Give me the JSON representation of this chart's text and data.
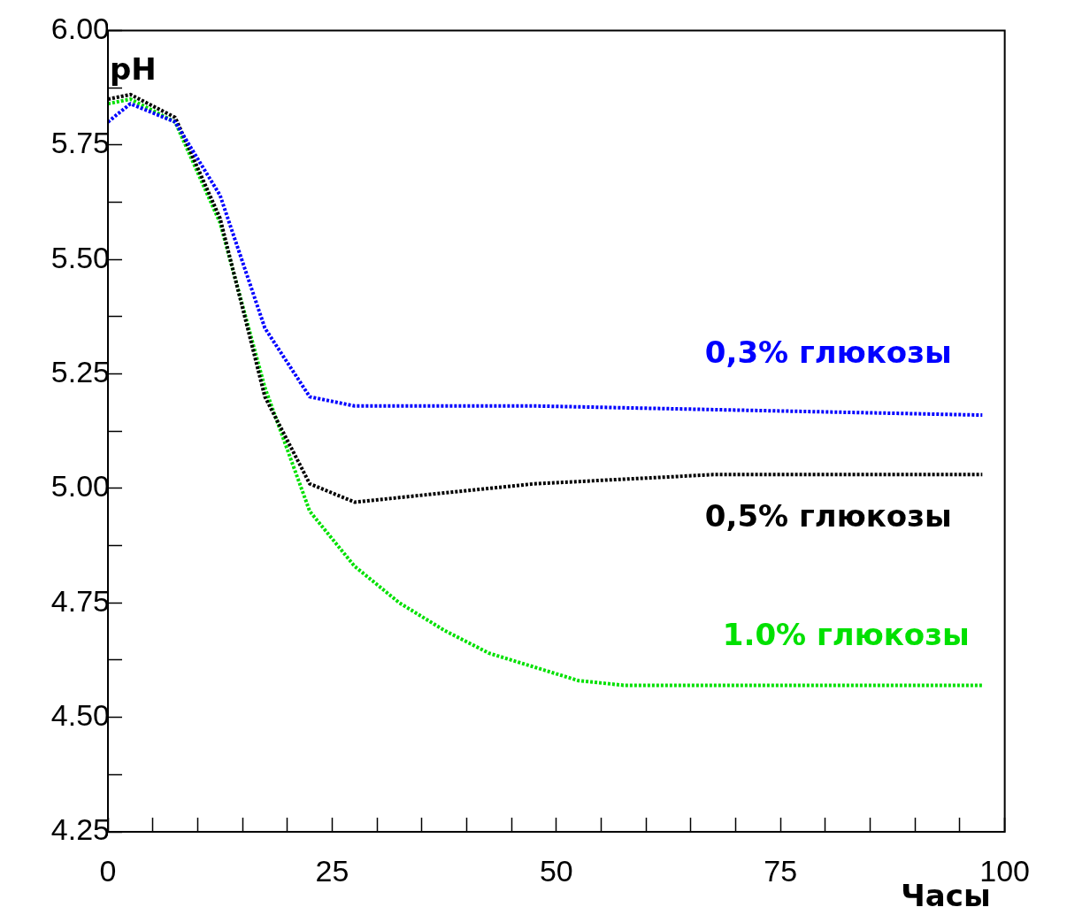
{
  "chart_data": {
    "type": "line",
    "xlabel": "Часы",
    "ylabel": "pH",
    "xlim": [
      0,
      100
    ],
    "ylim": [
      4.25,
      6
    ],
    "xticks": [
      0,
      {
        "value": 5,
        "label": null
      },
      {
        "value": 10,
        "label": null
      },
      {
        "value": 15,
        "label": null
      },
      {
        "value": 20,
        "label": null
      },
      25,
      {
        "value": 30,
        "label": null
      },
      {
        "value": 35,
        "label": null
      },
      {
        "value": 40,
        "label": null
      },
      {
        "value": 45,
        "label": null
      },
      50,
      {
        "value": 55,
        "label": null
      },
      {
        "value": 60,
        "label": null
      },
      {
        "value": 65,
        "label": null
      },
      {
        "value": 70,
        "label": null
      },
      75,
      {
        "value": 80,
        "label": null
      },
      {
        "value": 85,
        "label": null
      },
      {
        "value": 90,
        "label": null
      },
      {
        "value": 95,
        "label": null
      },
      100
    ],
    "yticks": [
      {
        "value": 4.25,
        "label": "4.25"
      },
      {
        "value": 4.375,
        "label": null
      },
      {
        "value": 4.5,
        "label": "4.50"
      },
      {
        "value": 4.625,
        "label": null
      },
      {
        "value": 4.75,
        "label": "4.75"
      },
      {
        "value": 4.875,
        "label": null
      },
      {
        "value": 5,
        "label": "5.00"
      },
      {
        "value": 5.125,
        "label": null
      },
      {
        "value": 5.25,
        "label": "5.25"
      },
      {
        "value": 5.375,
        "label": null
      },
      {
        "value": 5.5,
        "label": "5.50"
      },
      {
        "value": 5.625,
        "label": null
      },
      {
        "value": 5.75,
        "label": "5.75"
      },
      {
        "value": 5.875,
        "label": null
      },
      {
        "value": 6,
        "label": "6.00"
      }
    ],
    "grid": false,
    "legend": false,
    "marker": "none",
    "line_style": "dotted",
    "series": [
      {
        "name": "0,3% глюкозы",
        "color": "#0000ff",
        "x": [
          0,
          2.5,
          7.5,
          12.5,
          17.5,
          22.5,
          27.5,
          47.5,
          97.5
        ],
        "values": [
          5.8,
          5.84,
          5.8,
          5.64,
          5.35,
          5.2,
          5.18,
          5.18,
          5.16
        ]
      },
      {
        "name": "0,5% глюкозы",
        "color": "#000000",
        "x": [
          0,
          2.5,
          7.5,
          12.5,
          17.5,
          22.5,
          27.5,
          37.5,
          47.5,
          57.5,
          67.5,
          97.5
        ],
        "values": [
          5.85,
          5.86,
          5.81,
          5.59,
          5.2,
          5.01,
          4.97,
          4.99,
          5.01,
          5.02,
          5.03,
          5.03
        ]
      },
      {
        "name": "1.0% глюкозы",
        "color": "#00e000",
        "x": [
          0,
          2.5,
          7.5,
          12.5,
          17.5,
          22.5,
          27.5,
          32.5,
          37.5,
          42.5,
          47.5,
          52.5,
          57.5,
          97.5
        ],
        "values": [
          5.84,
          5.85,
          5.8,
          5.58,
          5.22,
          4.95,
          4.83,
          4.75,
          4.69,
          4.64,
          4.61,
          4.58,
          4.57,
          4.57
        ]
      }
    ]
  }
}
